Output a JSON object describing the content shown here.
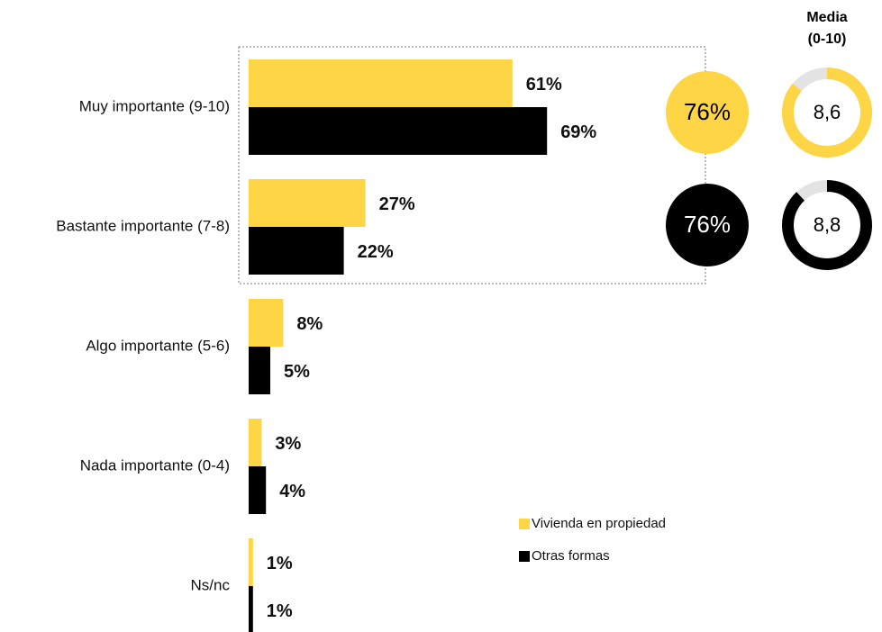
{
  "chart_data": {
    "type": "bar",
    "categories": [
      "Muy importante (9-10)",
      "Bastante importante (7-8)",
      "Algo importante (5-6)",
      "Nada importante (0-4)",
      "Ns/nc"
    ],
    "series": [
      {
        "name": "Vivienda en propiedad",
        "color": "#fdd545",
        "values": [
          61,
          27,
          8,
          3,
          1
        ],
        "value_labels": [
          "61%",
          "27%",
          "8%",
          "3%",
          "1%"
        ]
      },
      {
        "name": "Otras formas",
        "color": "#000000",
        "values": [
          69,
          22,
          5,
          4,
          1
        ],
        "value_labels": [
          "69%",
          "22%",
          "5%",
          "4%",
          "1%"
        ]
      }
    ],
    "summary": {
      "values": [
        76,
        76
      ],
      "value_labels": [
        "76%",
        "76%"
      ]
    },
    "mean": {
      "title": "Media",
      "subtitle": "(0-10)",
      "range": [
        0,
        10
      ],
      "values": [
        8.6,
        8.8
      ],
      "value_labels": [
        "8,6",
        "8,8"
      ]
    },
    "legend": "bottom-right"
  }
}
